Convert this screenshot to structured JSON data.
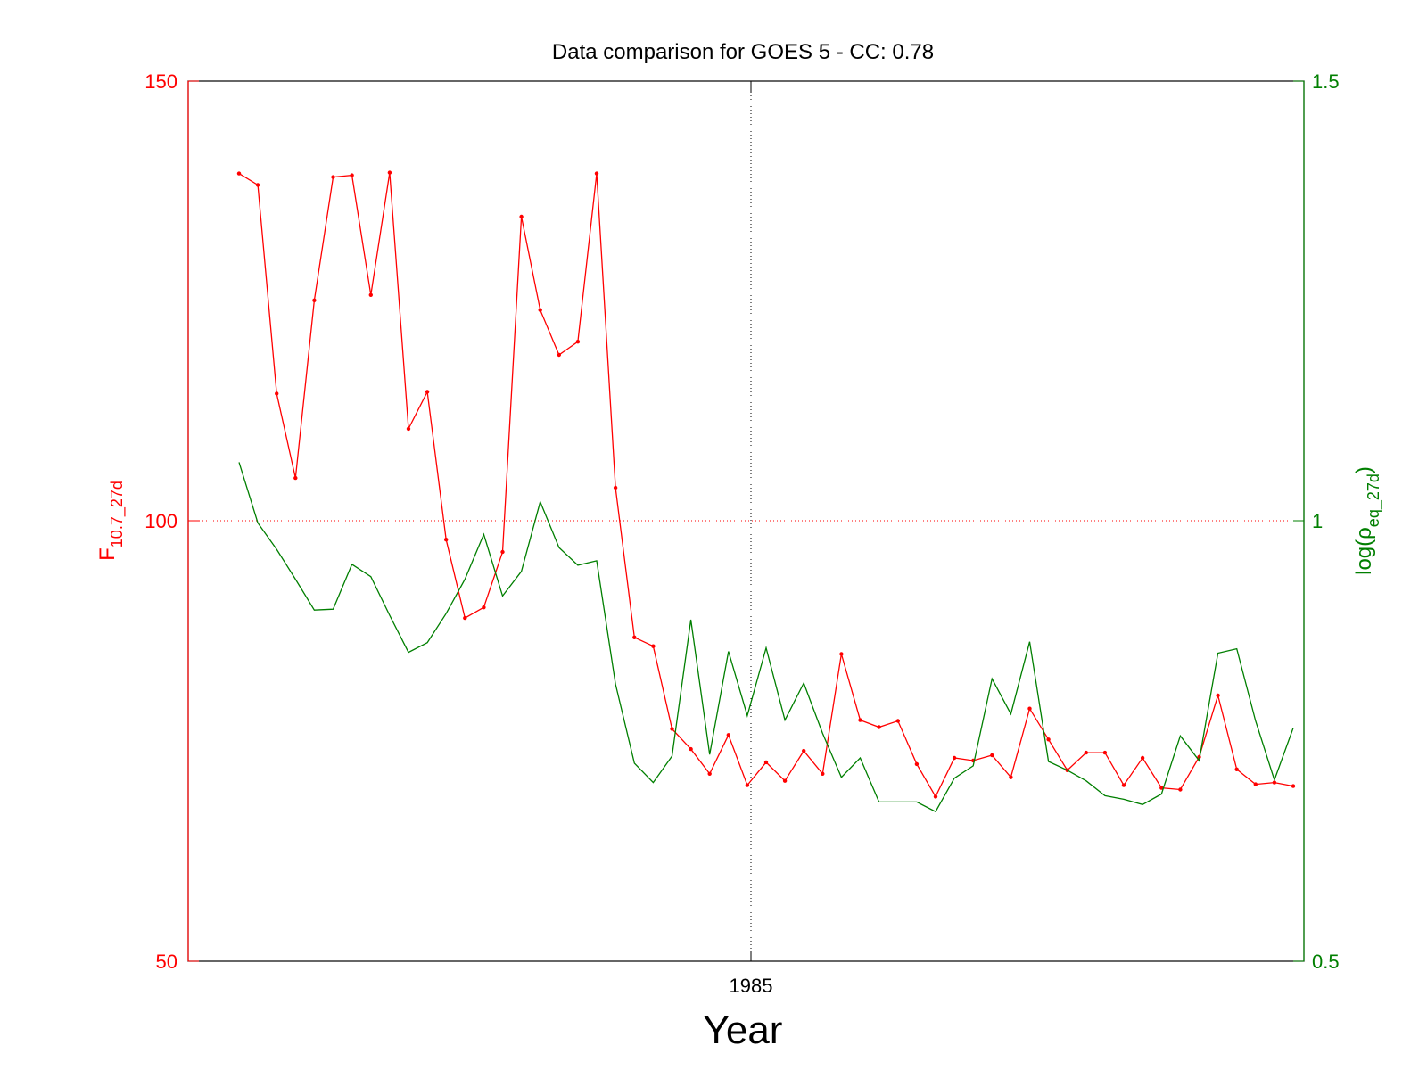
{
  "chart_data": {
    "type": "line",
    "title": "Data comparison for GOES 5 - CC: 0.78",
    "xlabel": "Year",
    "x_ticks": [
      "1985"
    ],
    "y_left": {
      "label_main": "F",
      "label_sub": "10.7_27d",
      "color": "#ff0000",
      "range": [
        50,
        150
      ],
      "ticks": [
        "50",
        "100",
        "150"
      ]
    },
    "y_right": {
      "label_main": "log(",
      "label_rho": "ρ",
      "label_sub": "eq_27d",
      "label_end": ")",
      "color": "#007f00",
      "range": [
        0.5,
        1.5
      ],
      "ticks": [
        "0.5",
        "1",
        "1.5"
      ]
    },
    "grid": "dotted crosshair at 1985 and 100 / 1",
    "series": [
      {
        "axis": "left",
        "color": "#ff0000",
        "markers": true,
        "values": [
          139.5,
          138.2,
          114.5,
          104.9,
          125.1,
          139.1,
          139.3,
          125.7,
          139.6,
          110.5,
          114.7,
          97.9,
          89.0,
          90.2,
          96.5,
          134.6,
          124.0,
          118.9,
          120.4,
          139.5,
          103.8,
          86.8,
          85.8,
          76.4,
          74.1,
          71.3,
          75.7,
          70.0,
          72.6,
          70.5,
          73.9,
          71.3,
          84.9,
          77.4,
          76.6,
          77.3,
          72.4,
          68.7,
          73.1,
          72.8,
          73.4,
          70.9,
          78.7,
          75.2,
          71.7,
          73.7,
          73.7,
          70.0,
          73.1,
          69.7,
          69.5,
          73.2,
          80.2,
          71.8,
          70.1,
          70.3,
          69.9
        ]
      },
      {
        "axis": "right",
        "color": "#007f00",
        "markers": false,
        "values": [
          1.067,
          0.998,
          0.968,
          0.934,
          0.899,
          0.9,
          0.951,
          0.937,
          0.893,
          0.851,
          0.862,
          0.895,
          0.934,
          0.985,
          0.915,
          0.943,
          1.022,
          0.97,
          0.95,
          0.955,
          0.815,
          0.725,
          0.703,
          0.733,
          0.888,
          0.735,
          0.852,
          0.779,
          0.856,
          0.774,
          0.816,
          0.759,
          0.709,
          0.731,
          0.681,
          0.681,
          0.681,
          0.67,
          0.708,
          0.722,
          0.821,
          0.781,
          0.863,
          0.727,
          0.717,
          0.705,
          0.688,
          0.684,
          0.678,
          0.69,
          0.756,
          0.728,
          0.85,
          0.855,
          0.773,
          0.706,
          0.765
        ]
      }
    ]
  }
}
